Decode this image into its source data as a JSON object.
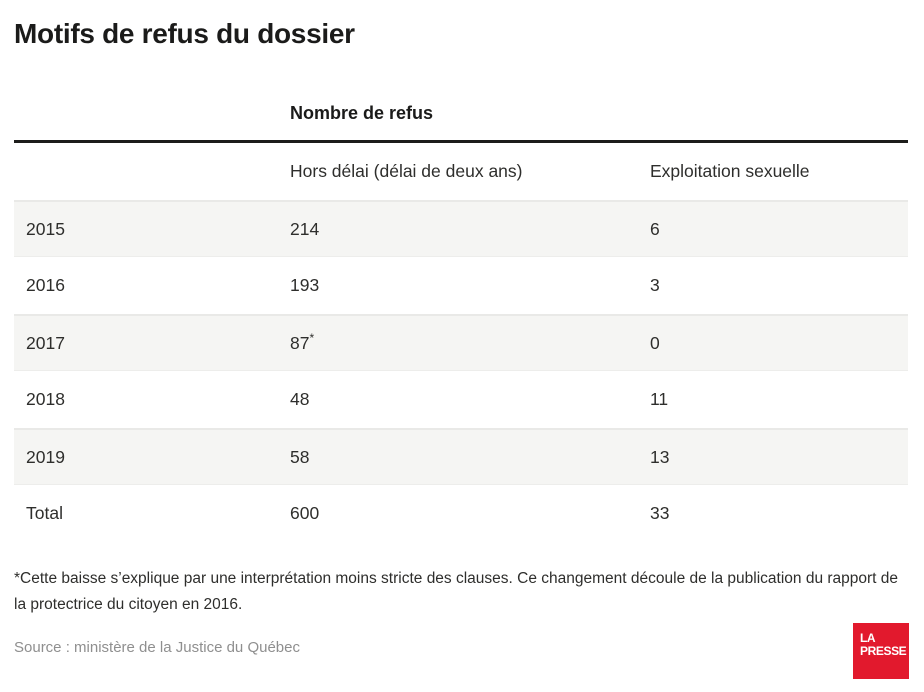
{
  "title": "Motifs de refus du dossier",
  "table": {
    "group_header": "Nombre de refus",
    "col_hors_delai": "Hors délai (délai de deux ans)",
    "col_exploitation": "Exploitation sexuelle",
    "rows": [
      {
        "label": "2015",
        "hors_delai": "214",
        "note": "",
        "exploitation": "6"
      },
      {
        "label": "2016",
        "hors_delai": "193",
        "note": "",
        "exploitation": "3"
      },
      {
        "label": "2017",
        "hors_delai": "87",
        "note": "*",
        "exploitation": "0"
      },
      {
        "label": "2018",
        "hors_delai": "48",
        "note": "",
        "exploitation": "11"
      },
      {
        "label": "2019",
        "hors_delai": "58",
        "note": "",
        "exploitation": "13"
      },
      {
        "label": "Total",
        "hors_delai": "600",
        "note": "",
        "exploitation": "33"
      }
    ]
  },
  "footnote": "*Cette baisse s’explique par une interprétation moins stricte des clauses. Ce changement découle de la publication du rapport de la protectrice du citoyen en 2016.",
  "source": "Source : ministère de la Justice du Québec",
  "logo": {
    "line1": "LA",
    "line2": "PRESSE"
  },
  "colors": {
    "brand_red": "#e2192d",
    "row_shade": "#f5f5f3",
    "rule_black": "#1d1d1b",
    "source_gray": "#8f8f8f"
  },
  "chart_data": {
    "type": "table",
    "title": "Motifs de refus du dossier",
    "column_group_header": "Nombre de refus",
    "columns": [
      "",
      "Hors délai (délai de deux ans)",
      "Exploitation sexuelle"
    ],
    "rows": [
      [
        "2015",
        214,
        6
      ],
      [
        "2016",
        193,
        3
      ],
      [
        "2017",
        "87*",
        0
      ],
      [
        "2018",
        48,
        11
      ],
      [
        "2019",
        58,
        13
      ],
      [
        "Total",
        600,
        33
      ]
    ],
    "footnote": "*Cette baisse s’explique par une interprétation moins stricte des clauses. Ce changement découle de la publication du rapport de la protectrice du citoyen en 2016.",
    "source": "Source : ministère de la Justice du Québec",
    "layout_hints": {
      "shaded_rows": [
        0,
        2,
        4
      ],
      "thick_rule_above_subheaders": true
    }
  }
}
